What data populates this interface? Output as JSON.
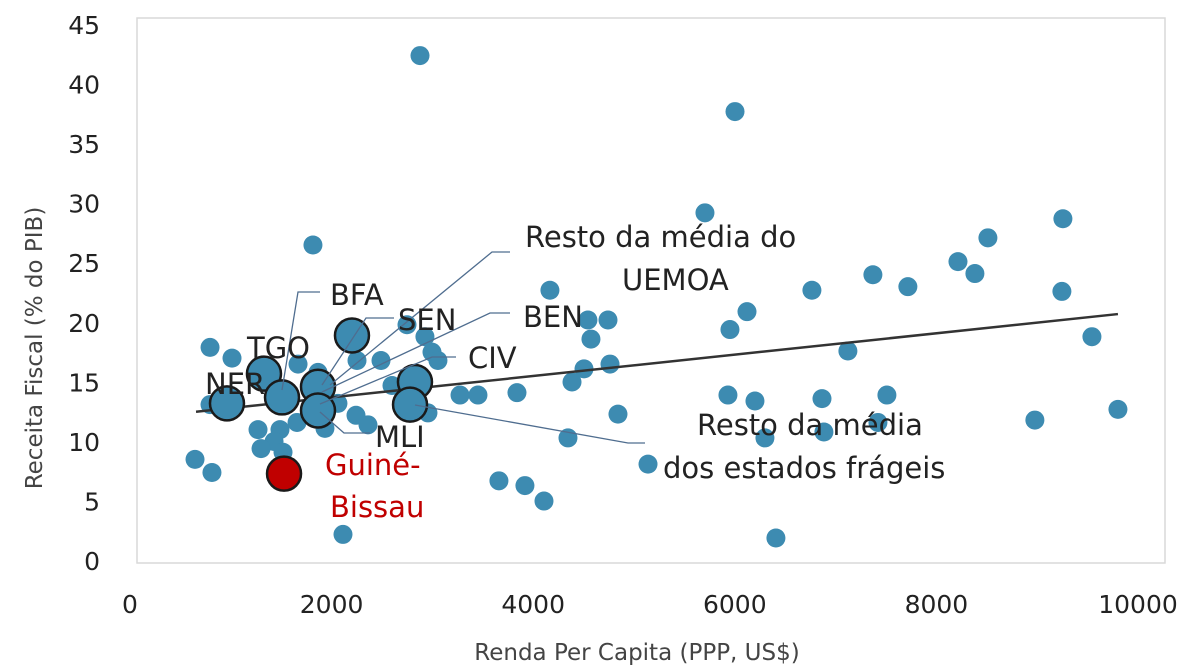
{
  "chart_data": {
    "type": "scatter",
    "xlabel": "Renda Per Capita (PPP, US$)",
    "ylabel": "Receita Fiscal  (% do PIB)",
    "xlim": [
      0,
      10000
    ],
    "ylim": [
      0,
      45
    ],
    "xticks": [
      0,
      2000,
      4000,
      6000,
      8000,
      10000
    ],
    "yticks": [
      0,
      5,
      10,
      15,
      20,
      25,
      30,
      35,
      40,
      45
    ],
    "series": [
      {
        "color": "#3d8bb1",
        "x": [
          2877,
          6002,
          5704,
          9255,
          1815,
          8511,
          8214,
          8382,
          7370,
          7717,
          6765,
          4166,
          9245,
          6121,
          5952,
          4742,
          4543,
          4573,
          9543,
          7122,
          4762,
          4504,
          4385,
          794,
          1012,
          1667,
          2252,
          2490,
          2996,
          3055,
          2748,
          2926,
          3274,
          3452,
          3839,
          6865,
          7509,
          5932,
          6200,
          9801,
          8977,
          7420,
          6884,
          6299,
          4841,
          4345,
          2956,
          2063,
          2242,
          2361,
          1934,
          1657,
          1488,
          1270,
          1429,
          1300,
          1518,
          645,
          813,
          5139,
          3660,
          3918,
          4107,
          2113,
          6408,
          794,
          2599,
          1865
        ],
        "values": [
          42.6,
          37.9,
          29.4,
          28.9,
          26.7,
          27.3,
          25.3,
          24.3,
          24.2,
          23.2,
          22.9,
          22.9,
          22.8,
          21.1,
          19.6,
          20.4,
          20.4,
          18.8,
          19.0,
          17.8,
          16.7,
          16.3,
          15.2,
          18.1,
          17.2,
          16.7,
          17.0,
          17.0,
          17.7,
          17.0,
          20.0,
          19.0,
          14.1,
          14.1,
          14.3,
          13.8,
          14.1,
          14.1,
          13.6,
          12.9,
          12.0,
          11.8,
          11.0,
          10.5,
          12.5,
          10.5,
          12.6,
          13.4,
          12.4,
          11.6,
          11.3,
          11.8,
          11.2,
          11.2,
          10.2,
          9.6,
          9.3,
          8.7,
          7.6,
          8.3,
          6.9,
          6.5,
          5.2,
          2.4,
          2.1,
          13.3,
          14.9,
          16.0
        ]
      },
      {
        "color": "#3d8bb1",
        "edgecolor": "#1a1a1a",
        "x": [
          2202,
          1329,
          962,
          1508,
          1865,
          1865,
          2827,
          2778
        ],
        "values": [
          19.1,
          15.9,
          13.4,
          13.9,
          14.8,
          12.8,
          15.2,
          13.3
        ]
      },
      {
        "color": "#c00000",
        "edgecolor": "#1a1a1a",
        "x": [
          1528
        ],
        "values": [
          7.5
        ]
      }
    ],
    "trendline": {
      "color": "#333333",
      "x": [
        655,
        9801
      ],
      "values": [
        12.7,
        20.9
      ]
    },
    "annotations": {
      "uemoa": [
        "Resto da média do",
        "UEMOA"
      ],
      "bfa": "BFA",
      "sen": "SEN",
      "ben": "BEN",
      "civ": "CIV",
      "tgo": "TGO",
      "ner": "NER",
      "mli": "MLI",
      "gnb": [
        "Guiné-",
        "Bissau"
      ],
      "frageis": [
        "Resto da média",
        "dos estados frágeis"
      ]
    }
  }
}
